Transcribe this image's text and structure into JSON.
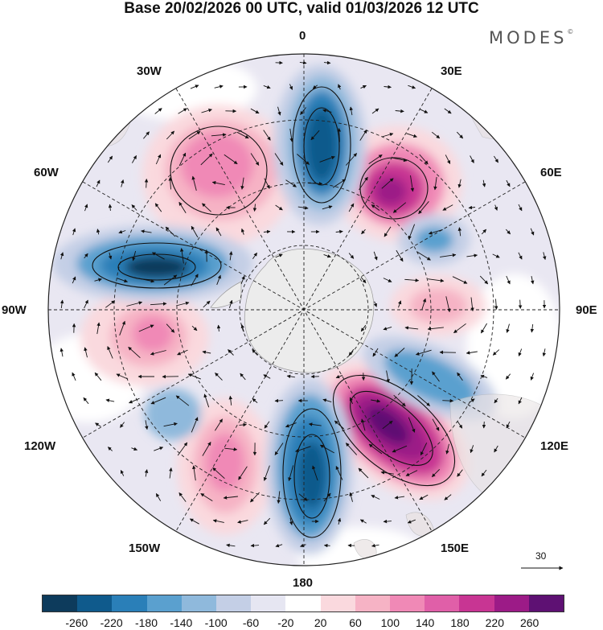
{
  "title": "Base 20/02/2026 00 UTC, valid 01/03/2026 12 UTC",
  "brand": {
    "name": "MODES",
    "mark": "©"
  },
  "longitudes": {
    "lon_0": "0",
    "lon_30e": "30E",
    "lon_60e": "60E",
    "lon_90e": "90E",
    "lon_120e": "120E",
    "lon_150e": "150E",
    "lon_180": "180",
    "lon_150w": "150W",
    "lon_120w": "120W",
    "lon_90w": "90W",
    "lon_60w": "60W",
    "lon_30w": "30W"
  },
  "reference_vector": {
    "value": "30"
  },
  "colorbar": {
    "colors": [
      "#0d3b5c",
      "#0f5a8c",
      "#2a7fb8",
      "#5aa0cf",
      "#8fb9dc",
      "#c4cfe6",
      "#e6e6f2",
      "#ffffff",
      "#fad9de",
      "#f6b3c5",
      "#f089b6",
      "#e05fa8",
      "#c83593",
      "#9c1b87",
      "#5e1173"
    ],
    "ticks": [
      "-260",
      "-220",
      "-180",
      "-140",
      "-100",
      "-60",
      "-20",
      "20",
      "60",
      "100",
      "140",
      "180",
      "220",
      "260"
    ]
  },
  "colors": {
    "land": "#ececec",
    "grid": "#222222",
    "contour": "#111111"
  }
}
